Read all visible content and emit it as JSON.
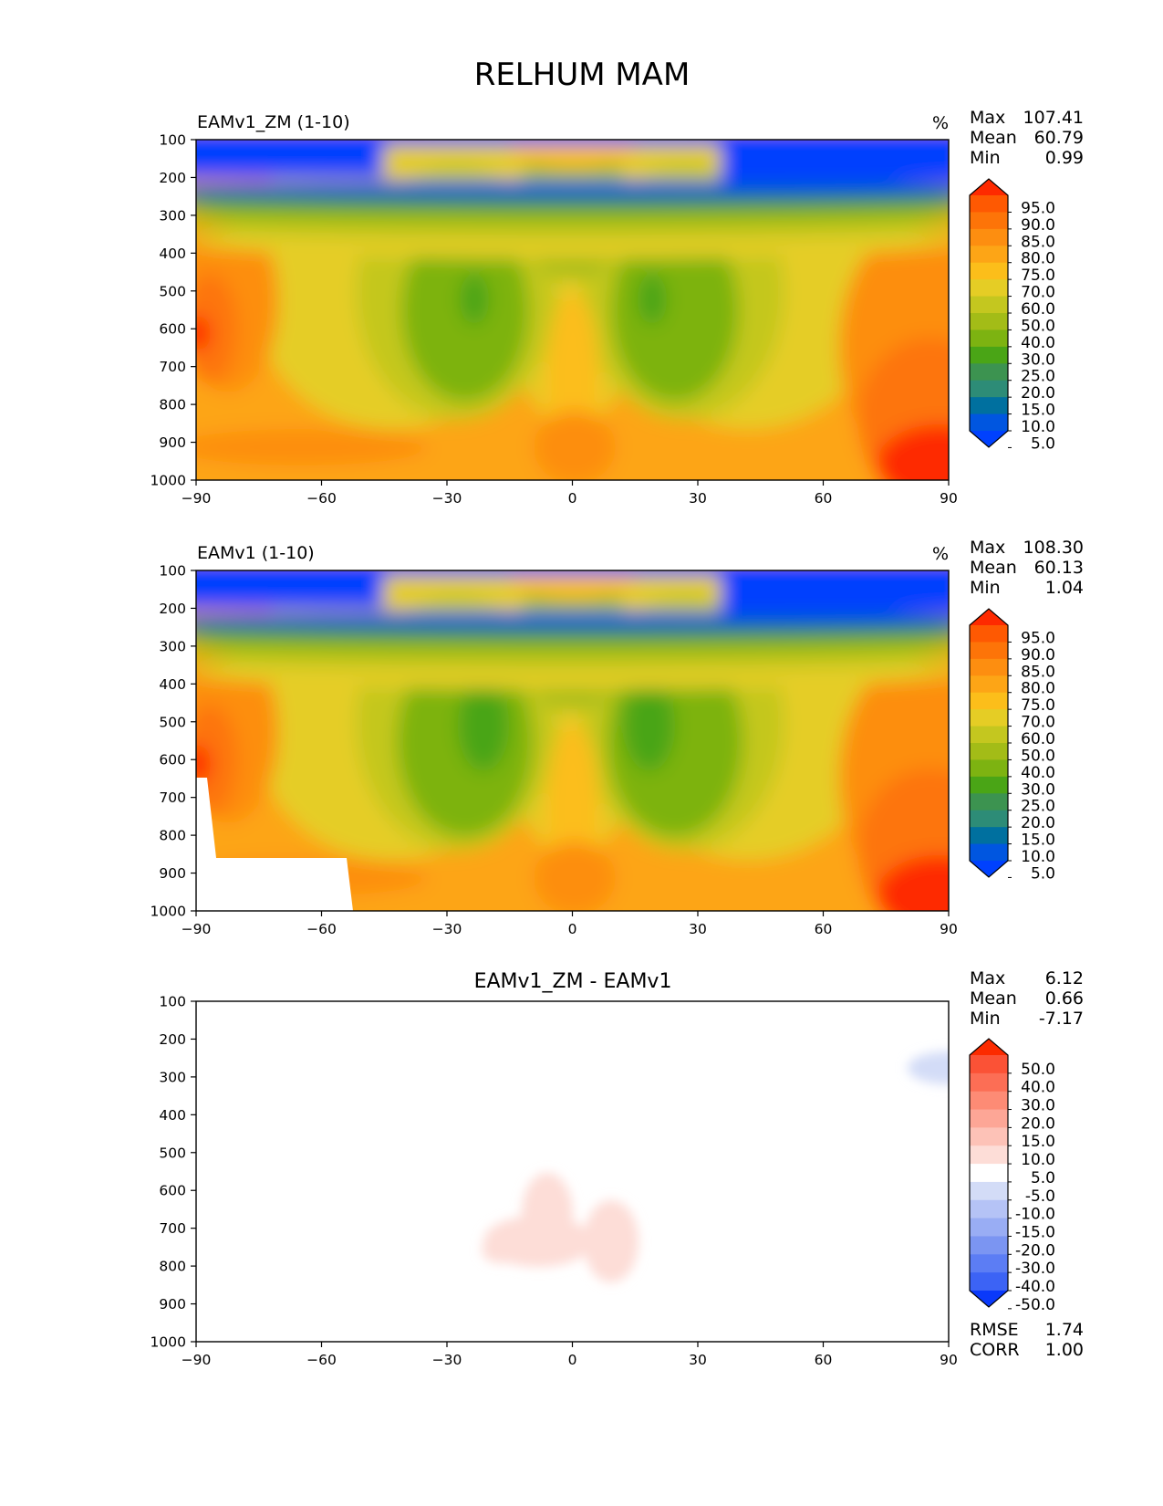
{
  "chart_data": {
    "type": "contour",
    "title": "RELHUM MAM",
    "x_ticks": [
      "−90",
      "−60",
      "−30",
      "0",
      "30",
      "60",
      "90"
    ],
    "y_ticks": [
      "100",
      "200",
      "300",
      "400",
      "500",
      "600",
      "700",
      "800",
      "900",
      "1000"
    ],
    "xlim": [
      -90,
      90
    ],
    "ylim": [
      100,
      1000
    ],
    "panels": [
      {
        "id": "test",
        "title": "EAMv1_ZM (1-10)",
        "units": "%",
        "stats": {
          "labels": [
            "Max",
            "Mean",
            "Min"
          ],
          "values": [
            "107.41",
            "60.79",
            "0.99"
          ]
        },
        "colorbar_levels": [
          "95.0",
          "90.0",
          "85.0",
          "80.0",
          "75.0",
          "70.0",
          "60.0",
          "50.0",
          "40.0",
          "30.0",
          "25.0",
          "20.0",
          "15.0",
          "10.0",
          "5.0"
        ]
      },
      {
        "id": "reference",
        "title": "EAMv1 (1-10)",
        "units": "%",
        "stats": {
          "labels": [
            "Max",
            "Mean",
            "Min"
          ],
          "values": [
            "108.30",
            "60.13",
            "1.04"
          ]
        },
        "colorbar_levels": [
          "95.0",
          "90.0",
          "85.0",
          "80.0",
          "75.0",
          "70.0",
          "60.0",
          "50.0",
          "40.0",
          "30.0",
          "25.0",
          "20.0",
          "15.0",
          "10.0",
          "5.0"
        ]
      },
      {
        "id": "diff",
        "title": "EAMv1_ZM - EAMv1",
        "units": "",
        "stats": {
          "labels": [
            "Max",
            "Mean",
            "Min"
          ],
          "values": [
            "6.12",
            "0.66",
            "-7.17"
          ]
        },
        "colorbar_levels": [
          "50.0",
          "40.0",
          "30.0",
          "20.0",
          "15.0",
          "10.0",
          "5.0",
          "-5.0",
          "-10.0",
          "-15.0",
          "-20.0",
          "-30.0",
          "-40.0",
          "-50.0"
        ],
        "metrics": {
          "labels": [
            "RMSE",
            "CORR"
          ],
          "values": [
            "1.74",
            "1.00"
          ]
        }
      }
    ]
  },
  "colors": {
    "field_colormap": [
      "#0041fe",
      "#0056e0",
      "#00709f",
      "#2d8c77",
      "#3c9350",
      "#4aa516",
      "#7db311",
      "#a3bc17",
      "#c4c71f",
      "#e5cd25",
      "#fcbe1a",
      "#fda516",
      "#fd8e10",
      "#fd7408",
      "#fe5902",
      "#fe2a00"
    ],
    "diff_colormap": [
      "#0a39fa",
      "#3c63f5",
      "#5c7df4",
      "#7b95f2",
      "#99adf4",
      "#b5c3f6",
      "#d3dcf7",
      "#ffffff",
      "#fdddd7",
      "#fdc2b7",
      "#fda696",
      "#fd8b75",
      "#fc6e55",
      "#fb5236",
      "#fc2b00"
    ]
  }
}
